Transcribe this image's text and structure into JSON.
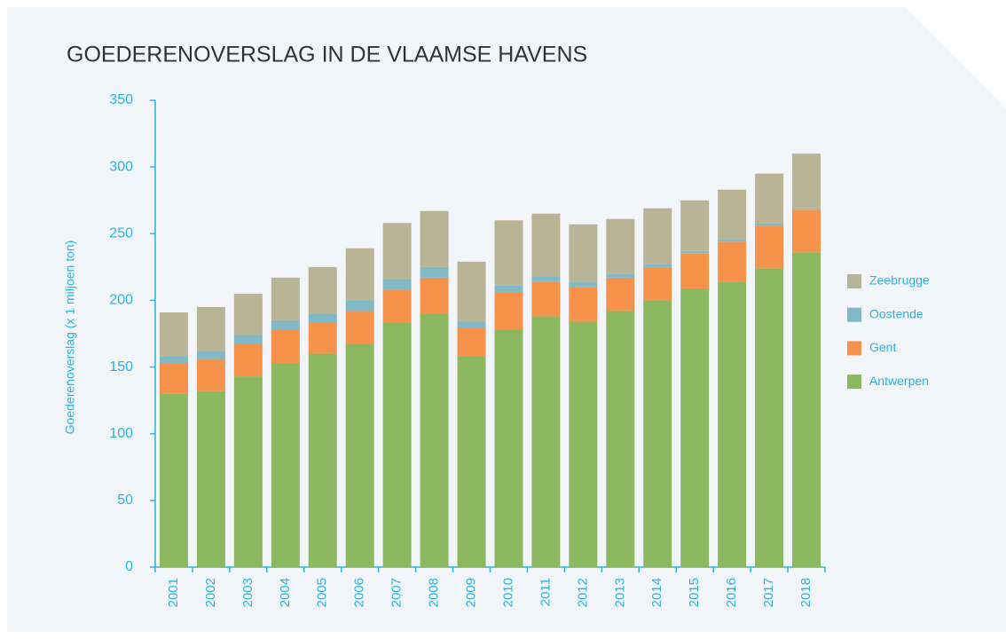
{
  "chart_data": {
    "type": "bar",
    "stacked": true,
    "title": "GOEDERENOVERSLAG IN DE VLAAMSE HAVENS",
    "ylabel": "Goederenoverslag (x 1 miljoen ton)",
    "categories": [
      "2001",
      "2002",
      "2003",
      "2004",
      "2005",
      "2006",
      "2007",
      "2008",
      "2009",
      "2010",
      "2011",
      "2012",
      "2013",
      "2014",
      "2015",
      "2016",
      "2017",
      "2018"
    ],
    "series": [
      {
        "name": "Antwerpen",
        "color": "#8db862",
        "values": [
          130,
          132,
          143,
          153,
          160,
          167,
          183,
          190,
          158,
          178,
          188,
          184,
          192,
          200,
          209,
          214,
          224,
          236
        ]
      },
      {
        "name": "Gent",
        "color": "#f7924a",
        "values": [
          23,
          24,
          24,
          25,
          23,
          25,
          25,
          27,
          21,
          28,
          26,
          26,
          25,
          25,
          26,
          30,
          32,
          32
        ]
      },
      {
        "name": "Oostende",
        "color": "#82b9c6",
        "values": [
          5,
          6,
          7,
          7,
          7,
          8,
          8,
          8,
          5,
          5,
          4,
          4,
          3,
          2,
          2,
          2,
          2,
          1
        ]
      },
      {
        "name": "Zeebrugge",
        "color": "#b9b495",
        "values": [
          33,
          33,
          31,
          32,
          35,
          39,
          42,
          42,
          45,
          49,
          47,
          43,
          41,
          42,
          38,
          37,
          37,
          41
        ]
      }
    ],
    "ylim": [
      0,
      350
    ],
    "yticks": [
      0,
      50,
      100,
      150,
      200,
      250,
      300,
      350
    ],
    "legend": "right"
  }
}
